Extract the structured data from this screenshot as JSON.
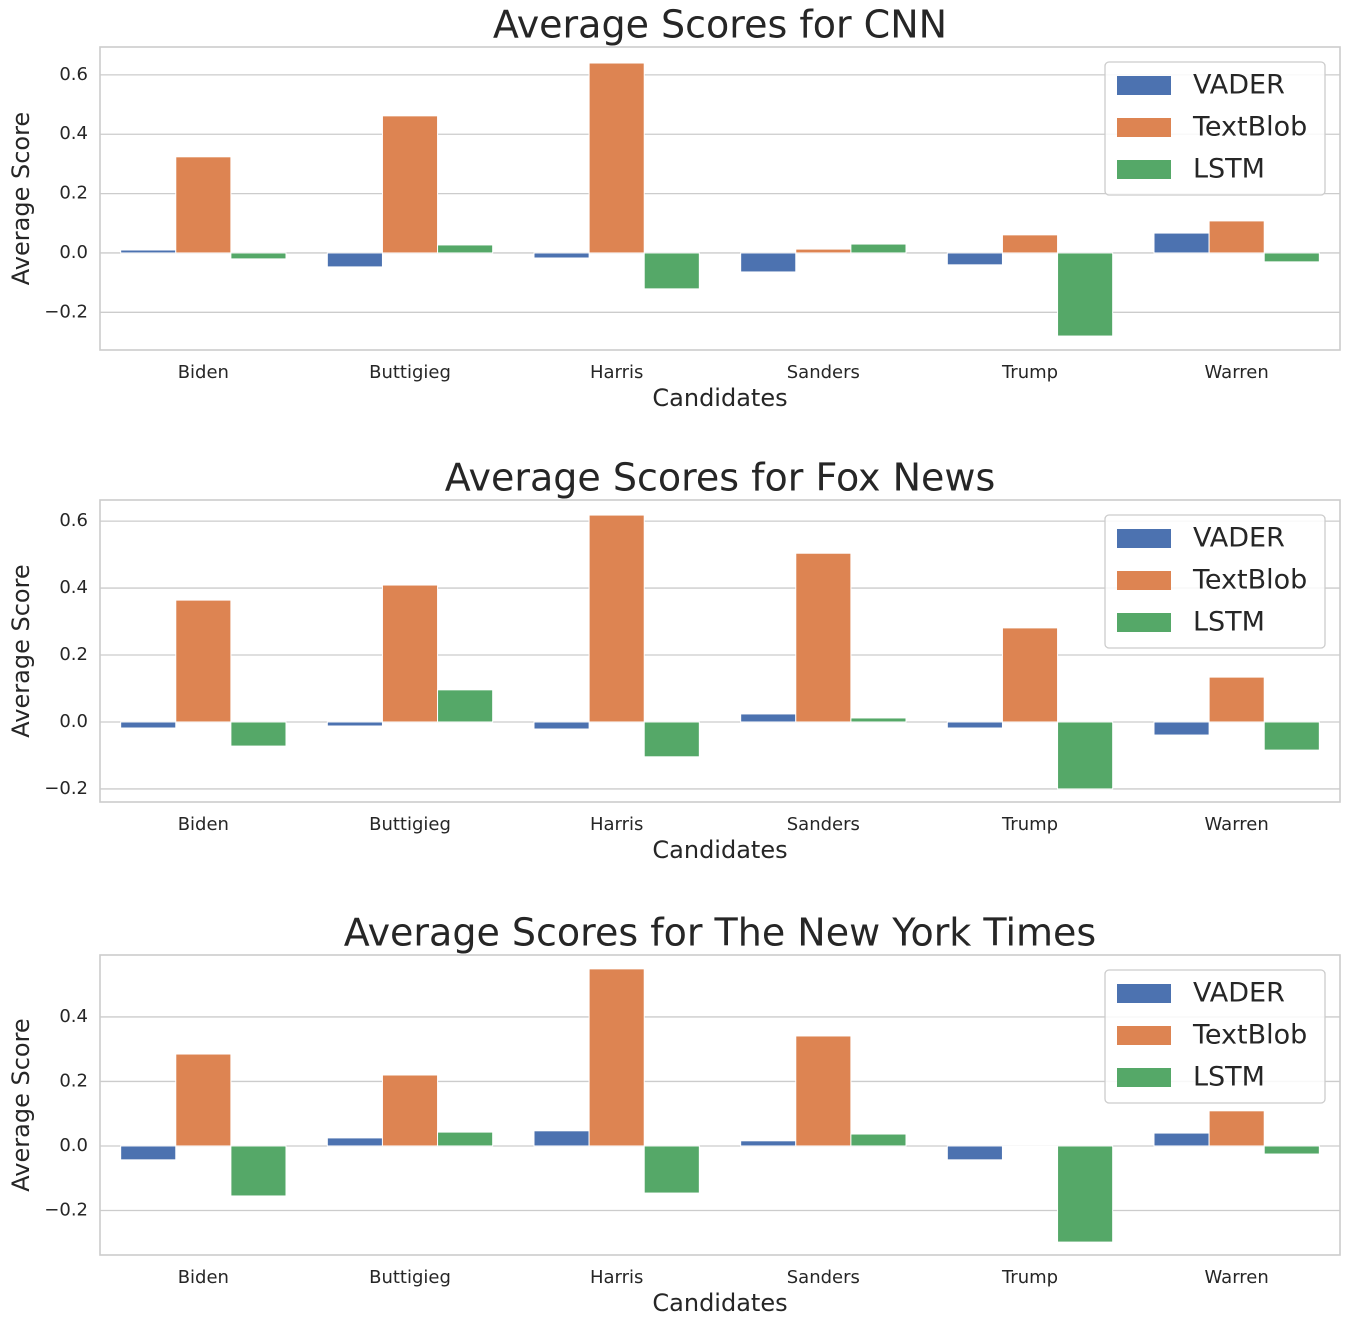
{
  "chart_data": [
    {
      "type": "bar",
      "title": "Average Scores for CNN",
      "x_label": "Candidates",
      "y_label": "Average Score",
      "categories": [
        "Biden",
        "Buttigieg",
        "Harris",
        "Sanders",
        "Trump",
        "Warren"
      ],
      "series": [
        {
          "name": "VADER",
          "color": "#4c72b0",
          "values": [
            0.01,
            -0.047,
            -0.017,
            -0.064,
            -0.04,
            0.067
          ]
        },
        {
          "name": "TextBlob",
          "color": "#dd8452",
          "values": [
            0.324,
            0.462,
            0.64,
            0.013,
            0.061,
            0.108
          ]
        },
        {
          "name": "LSTM",
          "color": "#55a868",
          "values": [
            -0.02,
            0.027,
            -0.121,
            0.03,
            -0.28,
            -0.03
          ]
        }
      ],
      "ylim": [
        -0.327,
        0.694
      ],
      "yticks": [
        {
          "value": -0.2,
          "label": "−0.2"
        },
        {
          "value": 0,
          "label": "0.0"
        },
        0.2,
        0.4,
        0.6
      ],
      "grid": true,
      "legend": "upper right"
    },
    {
      "type": "bar",
      "title": "Average Scores for Fox News",
      "x_label": "Candidates",
      "y_label": "Average Score",
      "categories": [
        "Biden",
        "Buttigieg",
        "Harris",
        "Sanders",
        "Trump",
        "Warren"
      ],
      "series": [
        {
          "name": "VADER",
          "color": "#4c72b0",
          "values": [
            -0.018,
            -0.012,
            -0.021,
            0.024,
            -0.018,
            -0.039
          ]
        },
        {
          "name": "TextBlob",
          "color": "#dd8452",
          "values": [
            0.364,
            0.409,
            0.618,
            0.504,
            0.281,
            0.134
          ]
        },
        {
          "name": "LSTM",
          "color": "#55a868",
          "values": [
            -0.072,
            0.096,
            -0.104,
            0.012,
            -0.2,
            -0.084
          ]
        }
      ],
      "ylim": [
        -0.239,
        0.663
      ],
      "yticks": [
        {
          "value": -0.2,
          "label": "−0.2"
        },
        {
          "value": 0,
          "label": "0.0"
        },
        0.2,
        0.4,
        0.6
      ],
      "grid": true,
      "legend": "upper right"
    },
    {
      "type": "bar",
      "title": "Average Scores for The New York Times",
      "x_label": "Candidates",
      "y_label": "Average Score",
      "categories": [
        "Biden",
        "Buttigieg",
        "Harris",
        "Sanders",
        "Trump",
        "Warren"
      ],
      "series": [
        {
          "name": "VADER",
          "color": "#4c72b0",
          "values": [
            -0.043,
            0.025,
            0.047,
            0.016,
            -0.043,
            0.04
          ]
        },
        {
          "name": "TextBlob",
          "color": "#dd8452",
          "values": [
            0.285,
            0.22,
            0.549,
            0.341,
            -0.003,
            0.109
          ]
        },
        {
          "name": "LSTM",
          "color": "#55a868",
          "values": [
            -0.155,
            0.043,
            -0.146,
            0.037,
            -0.298,
            -0.025
          ]
        }
      ],
      "ylim": [
        -0.338,
        0.592
      ],
      "yticks": [
        {
          "value": -0.2,
          "label": "−0.2"
        },
        {
          "value": 0,
          "label": "0.0"
        },
        0.2,
        0.4
      ],
      "grid": true,
      "legend": "upper right"
    }
  ]
}
